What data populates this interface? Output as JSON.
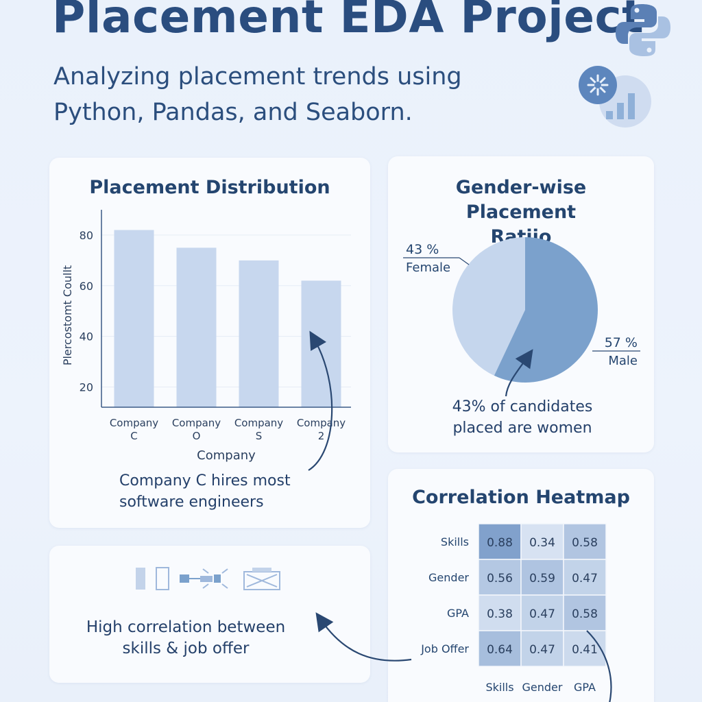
{
  "header": {
    "title": "Placement EDA Project",
    "subtitle": "Analyzing placement trends using Python, Pandas, and Seaborn."
  },
  "icons": [
    "python-logo-icon",
    "seaborn-logo-icon",
    "bar-chart-icon",
    "data-pipeline-icon"
  ],
  "colors": {
    "bar": "#c7d7ee",
    "pie_female": "#c5d6ed",
    "pie_male": "#7ba1cc",
    "heat_low": "#dde7f5",
    "heat_high": "#7e9fcb",
    "text_dark": "#24456f"
  },
  "chart_data": [
    {
      "type": "bar",
      "title": "Placement Distribution",
      "xlabel": "Company",
      "ylabel": "Plercostomt Coullt",
      "categories": [
        "Company C",
        "Company O",
        "Company S",
        "Company 2"
      ],
      "values": [
        82,
        75,
        70,
        62
      ],
      "yticks": [
        20,
        40,
        60,
        80
      ],
      "ylim": [
        12,
        90
      ],
      "grid": true,
      "annotation": "Company C hires most software engineers"
    },
    {
      "type": "pie",
      "title": "Gender-wise Placement Ratiio",
      "slices": [
        {
          "label": "Female",
          "value": 43,
          "value_label": "43 %"
        },
        {
          "label": "Male",
          "value": 57,
          "value_label": "57 %"
        }
      ],
      "annotation": "43% of candidates placed are women"
    },
    {
      "type": "heatmap",
      "title": "Correlation Heatmap",
      "rows": [
        "Skills",
        "Gender",
        "GPA",
        "Job Offer"
      ],
      "cols": [
        "Skills",
        "Gender",
        "GPA"
      ],
      "values": [
        [
          0.88,
          0.34,
          0.58
        ],
        [
          0.56,
          0.59,
          0.47
        ],
        [
          0.38,
          0.47,
          0.58
        ],
        [
          0.64,
          0.47,
          0.41
        ]
      ]
    }
  ],
  "insight_card": {
    "text": "High correlation between skills & job offer"
  }
}
